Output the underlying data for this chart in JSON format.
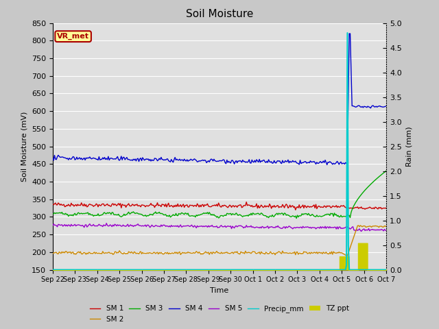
{
  "title": "Soil Moisture",
  "xlabel": "Time",
  "ylabel_left": "Soil Moisture (mV)",
  "ylabel_right": "Rain (mm)",
  "ylim_left": [
    150,
    850
  ],
  "ylim_right": [
    0.0,
    5.0
  ],
  "yticks_left": [
    150,
    200,
    250,
    300,
    350,
    400,
    450,
    500,
    550,
    600,
    650,
    700,
    750,
    800,
    850
  ],
  "yticks_right": [
    0.0,
    0.5,
    1.0,
    1.5,
    2.0,
    2.5,
    3.0,
    3.5,
    4.0,
    4.5,
    5.0
  ],
  "date_labels": [
    "Sep 22",
    "Sep 23",
    "Sep 24",
    "Sep 25",
    "Sep 26",
    "Sep 27",
    "Sep 28",
    "Sep 29",
    "Sep 30",
    "Oct 1",
    "Oct 2",
    "Oct 3",
    "Oct 4",
    "Oct 5",
    "Oct 6",
    "Oct 7"
  ],
  "background_color": "#c8c8c8",
  "axes_bg_color": "#e0e0e0",
  "grid_color": "#ffffff",
  "annotation_text": "VR_met",
  "annotation_bg": "#ffff99",
  "annotation_border": "#aa0000",
  "sm1_color": "#cc0000",
  "sm2_color": "#cc8800",
  "sm3_color": "#00aa00",
  "sm4_color": "#0000cc",
  "sm5_color": "#9900cc",
  "precip_color": "#00cccc",
  "tz_color": "#cccc00",
  "line_width": 1.0
}
